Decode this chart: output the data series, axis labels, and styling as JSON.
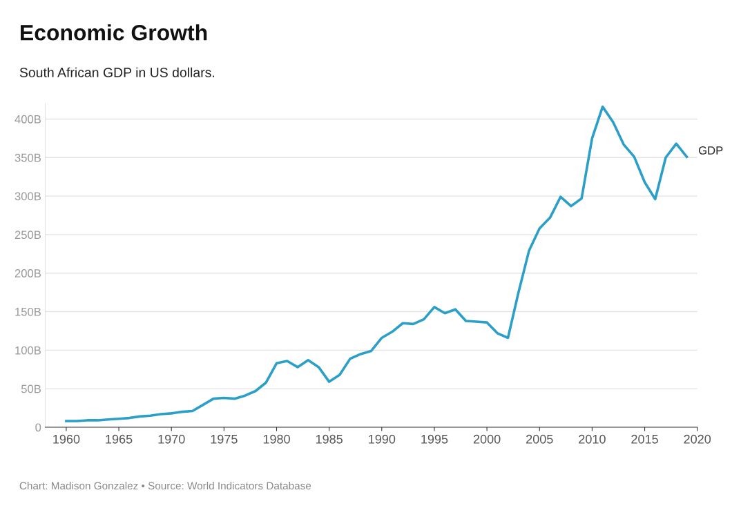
{
  "chart_data": {
    "type": "line",
    "title": "Economic Growth",
    "subtitle": "South African GDP in US dollars.",
    "annotations": [
      "Chart: Madison Gonzalez • Source: World Indicators Database"
    ],
    "x": [
      1960,
      1961,
      1962,
      1963,
      1964,
      1965,
      1966,
      1967,
      1968,
      1969,
      1970,
      1971,
      1972,
      1973,
      1974,
      1975,
      1976,
      1977,
      1978,
      1979,
      1980,
      1981,
      1982,
      1983,
      1984,
      1985,
      1986,
      1987,
      1988,
      1989,
      1990,
      1991,
      1992,
      1993,
      1994,
      1995,
      1996,
      1997,
      1998,
      1999,
      2000,
      2001,
      2002,
      2003,
      2004,
      2005,
      2006,
      2007,
      2008,
      2009,
      2010,
      2011,
      2012,
      2013,
      2014,
      2015,
      2016,
      2017,
      2018,
      2019
    ],
    "series": [
      {
        "name": "GDP",
        "color": "#2b9fc8",
        "values": [
          8,
          8,
          9,
          9,
          10,
          11,
          12,
          14,
          15,
          17,
          18,
          20,
          21,
          29,
          37,
          38,
          37,
          41,
          47,
          58,
          83,
          86,
          78,
          87,
          78,
          59,
          68,
          89,
          95,
          99,
          116,
          124,
          135,
          134,
          140,
          156,
          148,
          153,
          138,
          137,
          136,
          122,
          116,
          175,
          229,
          258,
          272,
          299,
          287,
          297,
          375,
          416,
          396,
          367,
          351,
          318,
          296,
          350,
          368,
          351
        ]
      }
    ],
    "xlim": [
      1958,
      2020
    ],
    "ylim": [
      0,
      420
    ],
    "xticks": [
      1960,
      1965,
      1970,
      1975,
      1980,
      1985,
      1990,
      1995,
      2000,
      2005,
      2010,
      2015,
      2020
    ],
    "yticks": [
      0,
      {
        "value": 50,
        "label": "50B"
      },
      {
        "value": 100,
        "label": "100B"
      },
      {
        "value": 150,
        "label": "150B"
      },
      {
        "value": 200,
        "label": "200B"
      },
      {
        "value": 250,
        "label": "250B"
      },
      {
        "value": 300,
        "label": "300B"
      },
      {
        "value": 350,
        "label": "350B"
      },
      {
        "value": 400,
        "label": "400B"
      }
    ],
    "grid": "y",
    "legend": false,
    "marker": "none",
    "line_style": "solid"
  }
}
